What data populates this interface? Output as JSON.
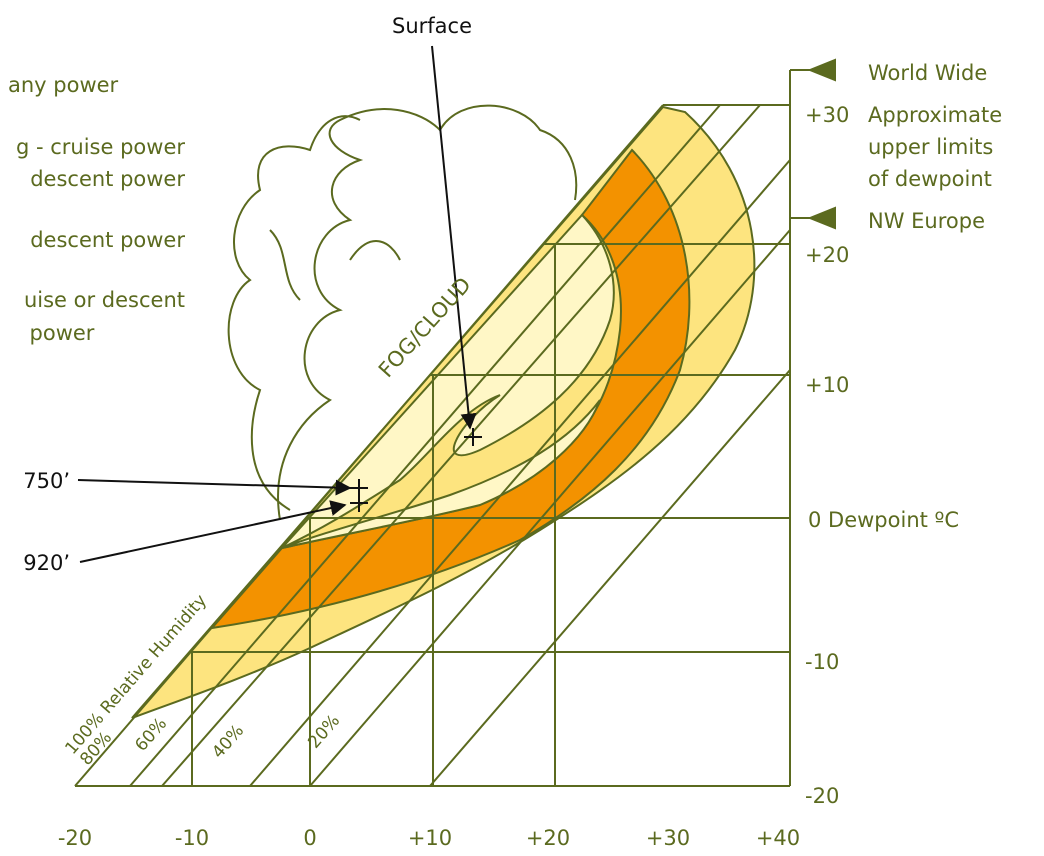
{
  "legend": [
    "any power",
    "g - cruise power",
    "descent power",
    "descent power",
    "uise or descent",
    "power"
  ],
  "annotations": {
    "surface": "Surface",
    "fog": "FOG/CLOUD",
    "alt_750": "750’",
    "alt_920": "920’"
  },
  "right_labels": {
    "world_wide": "World Wide",
    "approx": [
      "Approximate",
      "upper limits",
      "of dewpoint"
    ],
    "nw_europe": "NW Europe",
    "dewpoint": "0 Dewpoint ºC"
  },
  "y_ticks": [
    "+30",
    "+20",
    "+10",
    "-10",
    "-20"
  ],
  "x_ticks": [
    "-20",
    "-10",
    "0",
    "+10",
    "+20",
    "+30",
    "+40"
  ],
  "humidity": [
    "100% Relative Humidity",
    "80%",
    "60%",
    "40%",
    "20%"
  ]
}
